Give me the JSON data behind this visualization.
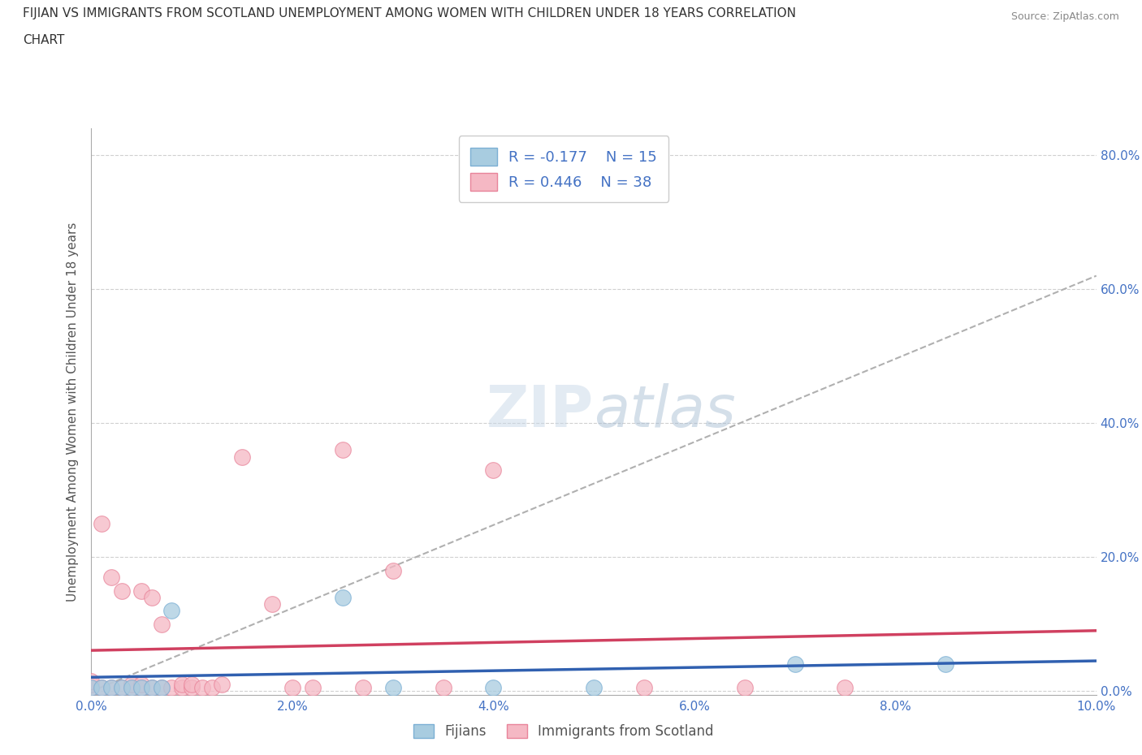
{
  "title_line1": "FIJIAN VS IMMIGRANTS FROM SCOTLAND UNEMPLOYMENT AMONG WOMEN WITH CHILDREN UNDER 18 YEARS CORRELATION",
  "title_line2": "CHART",
  "source": "Source: ZipAtlas.com",
  "ylabel": "Unemployment Among Women with Children Under 18 years",
  "xlim": [
    0.0,
    0.1
  ],
  "ylim": [
    -0.005,
    0.84
  ],
  "xtick_labels": [
    "0.0%",
    "2.0%",
    "4.0%",
    "6.0%",
    "8.0%",
    "10.0%"
  ],
  "xtick_vals": [
    0.0,
    0.02,
    0.04,
    0.06,
    0.08,
    0.1
  ],
  "ytick_labels": [
    "0.0%",
    "20.0%",
    "40.0%",
    "60.0%",
    "80.0%"
  ],
  "ytick_vals": [
    0.0,
    0.2,
    0.4,
    0.6,
    0.8
  ],
  "fijian_color": "#a8cce0",
  "fijian_edge_color": "#7bafd4",
  "scotland_color": "#f5b8c4",
  "scotland_edge_color": "#e8849a",
  "fijian_R": -0.177,
  "fijian_N": 15,
  "scotland_R": 0.446,
  "scotland_N": 38,
  "legend_text_color": "#4472c4",
  "fijian_line_color": "#3060b0",
  "scotland_line_color": "#d04060",
  "dash_line_color": "#b0b0b0",
  "watermark_color": "#c8d8e8",
  "fijian_x": [
    0.0,
    0.001,
    0.002,
    0.003,
    0.004,
    0.005,
    0.006,
    0.007,
    0.008,
    0.025,
    0.03,
    0.04,
    0.05,
    0.07,
    0.085
  ],
  "fijian_y": [
    0.005,
    0.005,
    0.005,
    0.005,
    0.005,
    0.005,
    0.005,
    0.005,
    0.12,
    0.14,
    0.005,
    0.005,
    0.005,
    0.04,
    0.04
  ],
  "scotland_x": [
    0.0,
    0.0,
    0.0,
    0.001,
    0.001,
    0.002,
    0.002,
    0.003,
    0.003,
    0.004,
    0.004,
    0.005,
    0.005,
    0.005,
    0.006,
    0.006,
    0.007,
    0.007,
    0.008,
    0.009,
    0.009,
    0.01,
    0.01,
    0.011,
    0.012,
    0.013,
    0.015,
    0.018,
    0.02,
    0.022,
    0.025,
    0.027,
    0.03,
    0.035,
    0.04,
    0.055,
    0.065,
    0.075
  ],
  "scotland_y": [
    0.005,
    0.01,
    0.015,
    0.005,
    0.25,
    0.005,
    0.17,
    0.005,
    0.15,
    0.005,
    0.01,
    0.005,
    0.01,
    0.15,
    0.005,
    0.14,
    0.005,
    0.1,
    0.005,
    0.005,
    0.01,
    0.005,
    0.01,
    0.005,
    0.005,
    0.01,
    0.35,
    0.13,
    0.005,
    0.005,
    0.36,
    0.005,
    0.18,
    0.005,
    0.33,
    0.005,
    0.005,
    0.005
  ],
  "dash_line_x0": 0.0,
  "dash_line_y0": 0.0,
  "dash_line_x1": 0.1,
  "dash_line_y1": 0.62,
  "background_color": "#ffffff",
  "grid_color": "#d0d0d0",
  "axis_label_color": "#555555",
  "bottom_legend_labels": [
    "Fijians",
    "Immigrants from Scotland"
  ]
}
